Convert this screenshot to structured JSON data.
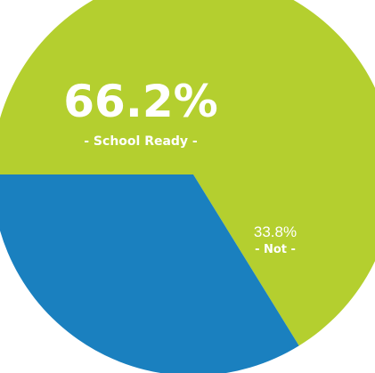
{
  "chart_data": {
    "type": "pie",
    "start_angle_deg": 180,
    "direction": "clockwise",
    "slices": [
      {
        "label": "- School Ready -",
        "value": 66.2,
        "value_label": "66.2%",
        "color": "#b4cf2f"
      },
      {
        "label": "- Not -",
        "value": 33.8,
        "value_label": "33.8%",
        "color": "#1a80bf"
      }
    ]
  }
}
